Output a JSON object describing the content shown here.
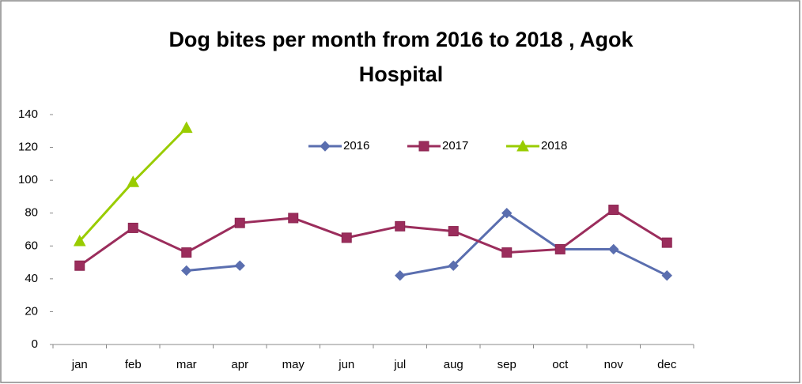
{
  "chart_data": {
    "type": "line",
    "title": [
      "Dog bites per month from 2016 to 2018 , Agok",
      "Hospital"
    ],
    "categories": [
      "jan",
      "feb",
      "mar",
      "apr",
      "may",
      "jun",
      "jul",
      "aug",
      "sep",
      "oct",
      "nov",
      "dec"
    ],
    "series": [
      {
        "name": "2016",
        "color": "#5a6eaf",
        "marker": "diamond",
        "values": [
          null,
          null,
          45,
          48,
          null,
          null,
          42,
          48,
          80,
          58,
          58,
          42
        ]
      },
      {
        "name": "2017",
        "color": "#9b2d5c",
        "marker": "square",
        "values": [
          48,
          71,
          56,
          74,
          77,
          65,
          72,
          69,
          56,
          58,
          82,
          62
        ]
      },
      {
        "name": "2018",
        "color": "#99cc00",
        "marker": "triangle",
        "values": [
          63,
          99,
          132,
          null,
          null,
          null,
          null,
          null,
          null,
          null,
          null,
          null
        ]
      }
    ],
    "ylim": [
      0,
      140
    ],
    "yticks": [
      0,
      20,
      40,
      60,
      80,
      100,
      120,
      140
    ],
    "legend": "top",
    "grid": false
  }
}
